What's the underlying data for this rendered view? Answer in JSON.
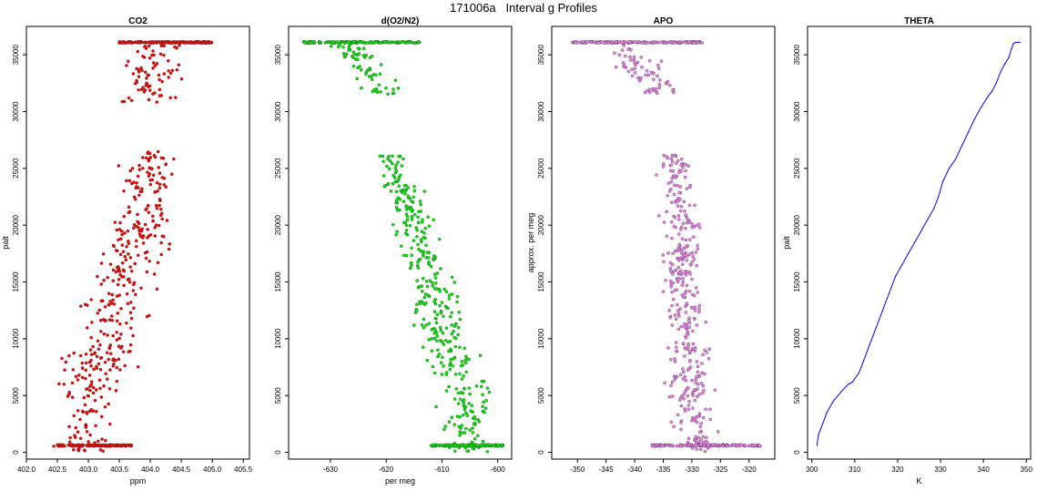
{
  "figure": {
    "title": "171006a   Interval g Profiles"
  },
  "chart_data": [
    {
      "type": "scatter",
      "title": "CO2",
      "xlabel": "ppm",
      "ylabel": "palt",
      "xlim": [
        402.0,
        405.6
      ],
      "ylim": [
        -600,
        37500
      ],
      "xticks": [
        402.0,
        402.5,
        403.0,
        403.5,
        404.0,
        404.5,
        405.0,
        405.5
      ],
      "xticklabels": [
        "402.0",
        "402.5",
        "403.0",
        "403.5",
        "404.0",
        "404.5",
        "405.0",
        "405.5"
      ],
      "yticks": [
        0,
        5000,
        10000,
        15000,
        20000,
        25000,
        30000,
        35000
      ],
      "yticklabels": [
        "0",
        "5000",
        "10000",
        "15000",
        "20000",
        "25000",
        "30000",
        "35000"
      ],
      "color": "#ff0000",
      "style": "points",
      "profile": {
        "segments": [
          [
            0,
            26500
          ],
          [
            30800,
            36200
          ]
        ],
        "center": [
          [
            0,
            402.9
          ],
          [
            5000,
            403.05
          ],
          [
            10000,
            403.3
          ],
          [
            15000,
            403.55
          ],
          [
            20000,
            403.85
          ],
          [
            26500,
            404.1
          ],
          [
            30800,
            403.95
          ],
          [
            33000,
            404.0
          ],
          [
            36200,
            404.05
          ]
        ],
        "spread": [
          [
            0,
            0.45
          ],
          [
            10000,
            0.5
          ],
          [
            20000,
            0.45
          ],
          [
            26500,
            0.4
          ],
          [
            30800,
            0.35
          ],
          [
            36200,
            0.4
          ]
        ],
        "bands": [
          {
            "y": 600,
            "x_from": 402.5,
            "x_to": 403.7
          },
          {
            "y": 36100,
            "x_from": 403.5,
            "x_to": 405.0
          }
        ]
      }
    },
    {
      "type": "scatter",
      "title": "d(O2/N2)",
      "xlabel": "per meg",
      "ylabel": "",
      "xlim": [
        -637.5,
        -597.5
      ],
      "ylim": [
        -600,
        37500
      ],
      "xticks": [
        -630,
        -620,
        -610,
        -600
      ],
      "xticklabels": [
        "-630",
        "-620",
        "-610",
        "-600"
      ],
      "yticks": [
        0,
        5000,
        10000,
        15000,
        20000,
        25000,
        30000,
        35000
      ],
      "yticklabels": [
        "0",
        "5000",
        "10000",
        "15000",
        "20000",
        "25000",
        "30000",
        "35000"
      ],
      "color": "#00ee00",
      "style": "points",
      "profile": {
        "segments": [
          [
            0,
            26200
          ],
          [
            31500,
            36200
          ]
        ],
        "center": [
          [
            0,
            -605
          ],
          [
            5000,
            -606
          ],
          [
            10000,
            -609
          ],
          [
            15000,
            -612
          ],
          [
            20000,
            -615
          ],
          [
            26200,
            -619
          ],
          [
            31500,
            -620
          ],
          [
            34000,
            -624
          ],
          [
            36200,
            -628
          ]
        ],
        "spread": [
          [
            0,
            3.5
          ],
          [
            10000,
            4.5
          ],
          [
            20000,
            3.5
          ],
          [
            26200,
            2.5
          ],
          [
            31500,
            3
          ],
          [
            36200,
            3
          ]
        ],
        "bands": [
          {
            "y": 600,
            "x_from": -612,
            "x_to": -599
          },
          {
            "y": 36100,
            "x_from": -635,
            "x_to": -614
          }
        ]
      }
    },
    {
      "type": "scatter",
      "title": "APO",
      "xlabel": "",
      "ylabel": "approx. per meg",
      "xlim": [
        -354.5,
        -315.5
      ],
      "ylim": [
        -600,
        37500
      ],
      "xticks": [
        -350,
        -345,
        -340,
        -335,
        -330,
        -325,
        -320
      ],
      "xticklabels": [
        "-350",
        "-345",
        "-340",
        "-335",
        "-330",
        "-325",
        "-320"
      ],
      "yticks": [
        0,
        5000,
        10000,
        15000,
        20000,
        25000,
        30000,
        35000
      ],
      "yticklabels": [
        "0",
        "5000",
        "10000",
        "15000",
        "20000",
        "25000",
        "30000",
        "35000"
      ],
      "color": "#ee82ee",
      "style": "points",
      "profile": {
        "segments": [
          [
            0,
            26200
          ],
          [
            31500,
            36200
          ]
        ],
        "center": [
          [
            0,
            -329
          ],
          [
            5000,
            -330
          ],
          [
            10000,
            -331
          ],
          [
            15000,
            -332
          ],
          [
            20000,
            -331.5
          ],
          [
            26200,
            -333
          ],
          [
            31500,
            -335
          ],
          [
            34000,
            -339
          ],
          [
            36200,
            -342
          ]
        ],
        "spread": [
          [
            0,
            3
          ],
          [
            10000,
            3.5
          ],
          [
            20000,
            3
          ],
          [
            26200,
            2.5
          ],
          [
            31500,
            3
          ],
          [
            36200,
            3.5
          ]
        ],
        "bands": [
          {
            "y": 600,
            "x_from": -337,
            "x_to": -318
          },
          {
            "y": 36100,
            "x_from": -351,
            "x_to": -328
          }
        ]
      }
    },
    {
      "type": "line",
      "title": "THETA",
      "xlabel": "K",
      "ylabel": "palt",
      "xlim": [
        299,
        351
      ],
      "ylim": [
        -600,
        37500
      ],
      "xticks": [
        300,
        310,
        320,
        330,
        340,
        350
      ],
      "xticklabels": [
        "300",
        "310",
        "320",
        "330",
        "340",
        "350"
      ],
      "yticks": [
        0,
        5000,
        10000,
        15000,
        20000,
        25000,
        30000,
        35000
      ],
      "yticklabels": [
        "0",
        "5000",
        "10000",
        "15000",
        "20000",
        "25000",
        "30000",
        "35000"
      ],
      "color": "#0000ff",
      "style": "line",
      "points": [
        [
          301.2,
          600
        ],
        [
          301.5,
          1500
        ],
        [
          302.5,
          2500
        ],
        [
          303.5,
          3500
        ],
        [
          305,
          4500
        ],
        [
          307,
          5400
        ],
        [
          308.5,
          6000
        ],
        [
          309.5,
          6200
        ],
        [
          311,
          7000
        ],
        [
          312,
          8000
        ],
        [
          313.5,
          9500
        ],
        [
          315,
          11000
        ],
        [
          316.5,
          12500
        ],
        [
          318,
          14000
        ],
        [
          319.5,
          15500
        ],
        [
          321,
          16500
        ],
        [
          322.5,
          17500
        ],
        [
          324,
          18500
        ],
        [
          325.5,
          19500
        ],
        [
          327,
          20500
        ],
        [
          328.5,
          21500
        ],
        [
          329.5,
          22500
        ],
        [
          330.5,
          23800
        ],
        [
          332,
          25000
        ],
        [
          333.5,
          25800
        ],
        [
          335,
          27000
        ],
        [
          336.5,
          28200
        ],
        [
          338,
          29400
        ],
        [
          339.5,
          30400
        ],
        [
          341,
          31300
        ],
        [
          342,
          31800
        ],
        [
          343,
          32500
        ],
        [
          344,
          33500
        ],
        [
          345,
          34200
        ],
        [
          346,
          34800
        ],
        [
          346.5,
          35500
        ],
        [
          347,
          36000
        ],
        [
          347.5,
          36100
        ],
        [
          348.5,
          36100
        ]
      ]
    }
  ]
}
